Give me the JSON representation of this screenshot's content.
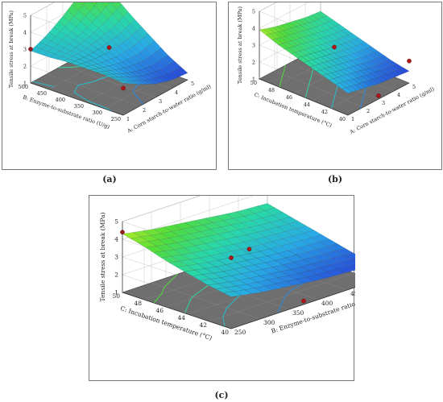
{
  "chart_data": [
    {
      "id": "a",
      "type": "surface3d",
      "caption": "(a)",
      "zlabel": "Tensile stress at break (MPa)",
      "xlabel": "A: Corn starch-to-water ratio (g/ml)",
      "ylabel": "B: Enzyme-to-substrate ratio (U/g)",
      "xlim": [
        1,
        5
      ],
      "ylim": [
        250,
        500
      ],
      "zlim": [
        1,
        5
      ],
      "xticks": [
        "1",
        "2",
        "3",
        "4",
        "5"
      ],
      "yticks": [
        "250",
        "300",
        "350",
        "400",
        "450",
        "500"
      ],
      "zticks": [
        "1",
        "2",
        "3",
        "4",
        "5"
      ],
      "surface": [
        [
          2.9,
          2.3,
          1.8,
          1.5,
          1.4
        ],
        [
          3.0,
          2.5,
          2.1,
          1.9,
          2.0
        ],
        [
          3.0,
          2.7,
          2.5,
          2.5,
          2.8
        ],
        [
          3.0,
          2.9,
          3.0,
          3.2,
          3.6
        ],
        [
          2.9,
          3.1,
          3.4,
          3.9,
          4.5
        ],
        [
          2.9,
          3.3,
          3.9,
          4.6,
          5.3
        ]
      ],
      "points": [
        {
          "x": 1,
          "y": 500,
          "z": 3.0
        },
        {
          "x": 3,
          "y": 375,
          "z": 3.0
        },
        {
          "x": 1,
          "y": 250,
          "z": 2.6
        }
      ]
    },
    {
      "id": "b",
      "type": "surface3d",
      "caption": "(b)",
      "zlabel": "Tensile stress at break (MPa)",
      "xlabel": "A: Corn starch-to-water ratio (g/ml)",
      "ylabel": "C: Incubation temperature (°C)",
      "xlim": [
        1,
        5
      ],
      "ylim": [
        40,
        50
      ],
      "zlim": [
        1,
        5
      ],
      "xticks": [
        "1",
        "2",
        "3",
        "4",
        "5"
      ],
      "yticks": [
        "40",
        "42",
        "44",
        "46",
        "48",
        "50"
      ],
      "zticks": [
        "1",
        "2",
        "3",
        "4",
        "5"
      ],
      "surface": [
        [
          2.3,
          2.1,
          1.9,
          1.8,
          1.7
        ],
        [
          2.6,
          2.4,
          2.2,
          2.0,
          1.9
        ],
        [
          2.9,
          2.7,
          2.5,
          2.3,
          2.2
        ],
        [
          3.2,
          3.0,
          2.8,
          2.6,
          2.5
        ],
        [
          3.5,
          3.3,
          3.1,
          2.9,
          2.8
        ],
        [
          3.9,
          3.6,
          3.4,
          3.2,
          3.1
        ]
      ],
      "points": [
        {
          "x": 3,
          "y": 45,
          "z": 3.0
        },
        {
          "x": 5,
          "y": 40,
          "z": 2.3
        },
        {
          "x": 3,
          "y": 40,
          "z": 1.2
        }
      ]
    },
    {
      "id": "c",
      "type": "surface3d",
      "caption": "(c)",
      "zlabel": "Tensile stress at break (MPa)",
      "xlabel": "B: Enzyme-to-substrate ratio (U/g)",
      "ylabel": "C: Incubation temperature (°C)",
      "xlim": [
        250,
        500
      ],
      "ylim": [
        40,
        50
      ],
      "zlim": [
        1,
        5
      ],
      "xticks": [
        "250",
        "300",
        "350",
        "400",
        "450",
        "500"
      ],
      "yticks": [
        "40",
        "42",
        "44",
        "46",
        "48",
        "50"
      ],
      "zticks": [
        "1",
        "2",
        "3",
        "4",
        "5"
      ],
      "surface": [
        [
          2.8,
          2.5,
          2.3,
          2.1,
          2.0,
          1.9
        ],
        [
          3.0,
          2.7,
          2.5,
          2.3,
          2.2,
          2.1
        ],
        [
          3.3,
          3.0,
          2.8,
          2.6,
          2.5,
          2.4
        ],
        [
          3.6,
          3.3,
          3.1,
          2.9,
          2.8,
          2.7
        ],
        [
          4.0,
          3.7,
          3.5,
          3.3,
          3.1,
          3.0
        ],
        [
          4.3,
          4.0,
          3.8,
          3.6,
          3.4,
          3.3
        ]
      ],
      "points": [
        {
          "x": 250,
          "y": 50,
          "z": 4.4
        },
        {
          "x": 375,
          "y": 45,
          "z": 3.1
        },
        {
          "x": 500,
          "y": 40,
          "z": 2.0
        },
        {
          "x": 375,
          "y": 40,
          "z": 1.2
        },
        {
          "x": 250,
          "y": 40,
          "z": 5.0
        }
      ]
    }
  ]
}
